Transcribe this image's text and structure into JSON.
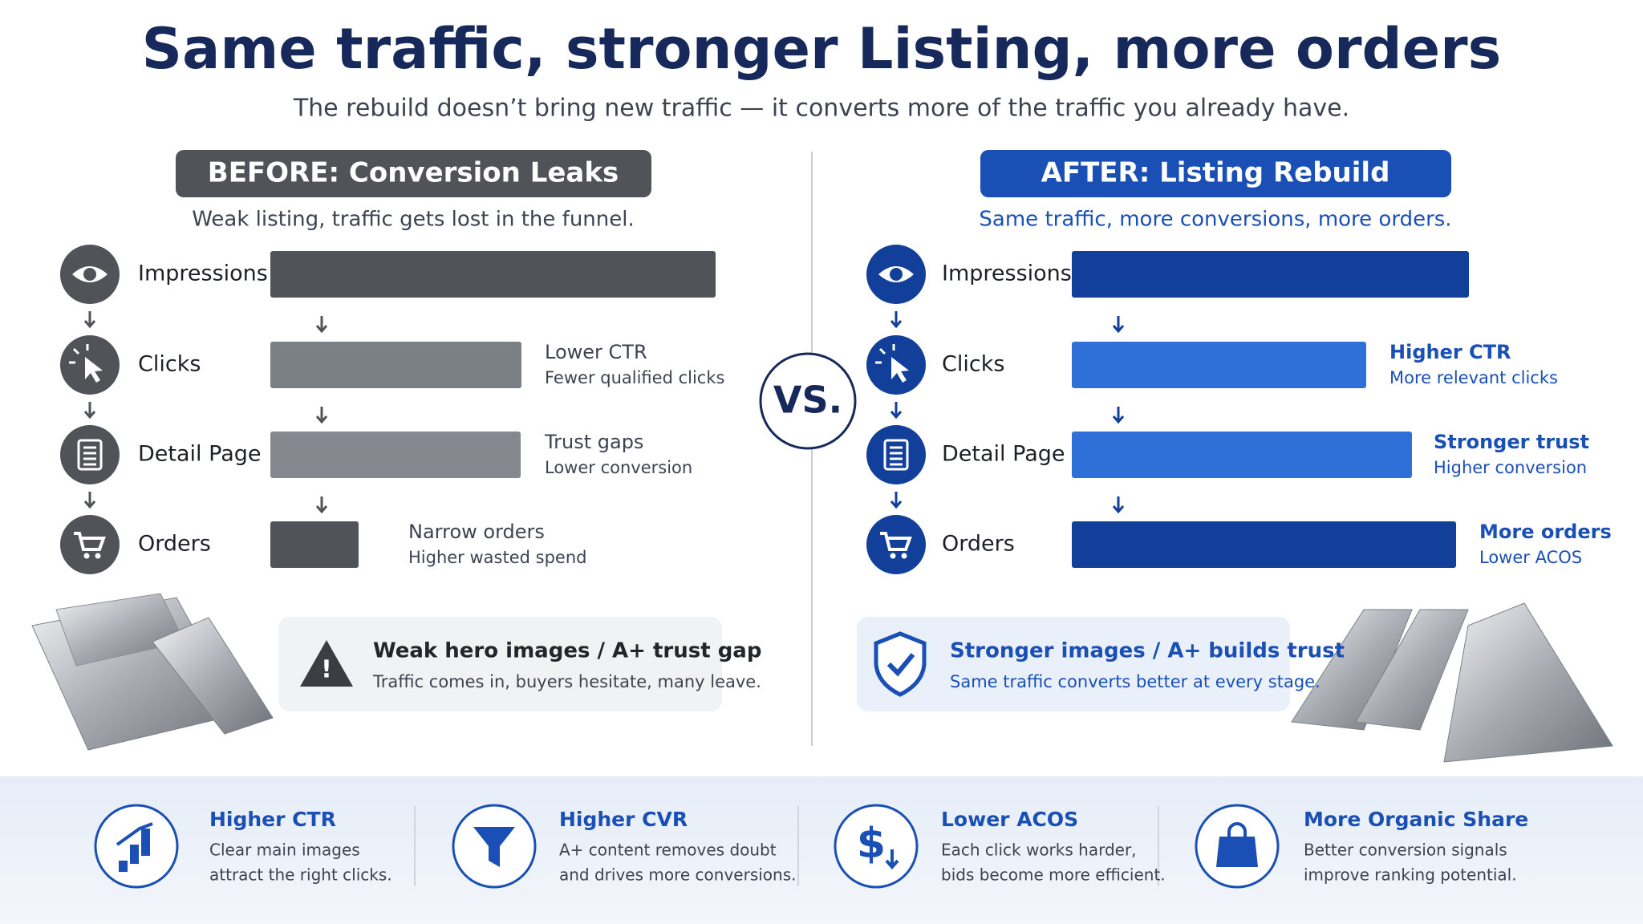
{
  "title": "Same traffic, stronger Listing, more orders",
  "subtitle": "The rebuild doesn’t bring new traffic — it converts more of the traffic you already have.",
  "vs": "VS.",
  "before": {
    "header": "BEFORE: Conversion Leaks",
    "subheader": "Weak listing, traffic gets lost in the funnel.",
    "stages": [
      {
        "label": "Impressions"
      },
      {
        "label": "Clicks",
        "note_title": "Lower CTR",
        "note_text": "Fewer qualified clicks"
      },
      {
        "label": "Detail Page",
        "note_title": "Trust gaps",
        "note_text": "Lower conversion"
      },
      {
        "label": "Orders",
        "note_title": "Narrow orders",
        "note_text": "Higher wasted spend"
      }
    ],
    "callout": {
      "title": "Weak hero images / A+ trust gap",
      "text": "Traffic comes in, buyers hesitate, many leave."
    }
  },
  "after": {
    "header": "AFTER: Listing Rebuild",
    "subheader": "Same traffic, more conversions, more orders.",
    "stages": [
      {
        "label": "Impressions"
      },
      {
        "label": "Clicks",
        "note_title": "Higher CTR",
        "note_text": "More relevant clicks"
      },
      {
        "label": "Detail Page",
        "note_title": "Stronger trust",
        "note_text": "Higher conversion"
      },
      {
        "label": "Orders",
        "note_title": "More orders",
        "note_text": "Lower ACOS"
      }
    ],
    "callout": {
      "title": "Stronger images / A+ builds trust",
      "text": "Same traffic converts better at every stage."
    }
  },
  "benefits": [
    {
      "title": "Higher CTR",
      "lines": [
        "Clear main images",
        "attract the right clicks."
      ]
    },
    {
      "title": "Higher CVR",
      "lines": [
        "A+ content removes doubt",
        "and drives more conversions."
      ]
    },
    {
      "title": "Lower ACOS",
      "lines": [
        "Each click works harder,",
        "bids become more efficient."
      ]
    },
    {
      "title": "More Organic Share",
      "lines": [
        "Better conversion signals",
        "improve ranking potential."
      ]
    }
  ]
}
